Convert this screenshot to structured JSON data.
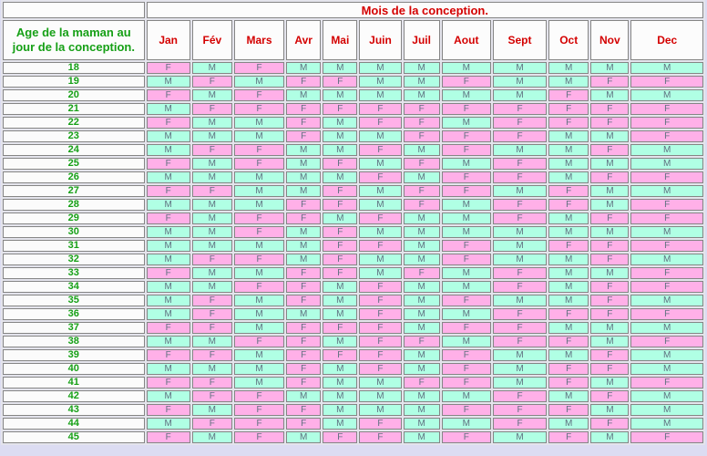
{
  "page": {
    "background": "#dcdcf2"
  },
  "table": {
    "title": "Mois de la conception.",
    "row_header": "Age de la maman au jour de la conception.",
    "months": [
      "Jan",
      "Fév",
      "Mars",
      "Avr",
      "Mai",
      "Juin",
      "Juil",
      "Aout",
      "Sept",
      "Oct",
      "Nov",
      "Dec"
    ],
    "colors": {
      "female_cell_bg": "#ffb0e8",
      "male_cell_bg": "#b0ffe4",
      "title_text": "#d40000",
      "age_text": "#16a016",
      "value_text": "#5f7080"
    },
    "rows": [
      {
        "age": "18",
        "values": [
          "F",
          "M",
          "F",
          "M",
          "M",
          "M",
          "M",
          "M",
          "M",
          "M",
          "M",
          "M"
        ]
      },
      {
        "age": "19",
        "values": [
          "M",
          "F",
          "M",
          "F",
          "F",
          "M",
          "M",
          "F",
          "M",
          "M",
          "F",
          "F"
        ]
      },
      {
        "age": "20",
        "values": [
          "F",
          "M",
          "F",
          "M",
          "M",
          "M",
          "M",
          "M",
          "M",
          "F",
          "M",
          "M"
        ]
      },
      {
        "age": "21",
        "values": [
          "M",
          "F",
          "F",
          "F",
          "F",
          "F",
          "F",
          "F",
          "F",
          "F",
          "F",
          "F"
        ]
      },
      {
        "age": "22",
        "values": [
          "F",
          "M",
          "M",
          "F",
          "M",
          "F",
          "F",
          "M",
          "F",
          "F",
          "F",
          "F"
        ]
      },
      {
        "age": "23",
        "values": [
          "M",
          "M",
          "M",
          "F",
          "M",
          "M",
          "F",
          "F",
          "F",
          "M",
          "M",
          "F"
        ]
      },
      {
        "age": "24",
        "values": [
          "M",
          "F",
          "F",
          "M",
          "M",
          "F",
          "M",
          "F",
          "M",
          "M",
          "F",
          "M"
        ]
      },
      {
        "age": "25",
        "values": [
          "F",
          "M",
          "F",
          "M",
          "F",
          "M",
          "F",
          "M",
          "F",
          "M",
          "M",
          "M"
        ]
      },
      {
        "age": "26",
        "values": [
          "M",
          "M",
          "M",
          "M",
          "M",
          "F",
          "M",
          "F",
          "F",
          "M",
          "F",
          "F"
        ]
      },
      {
        "age": "27",
        "values": [
          "F",
          "F",
          "M",
          "M",
          "F",
          "M",
          "F",
          "F",
          "M",
          "F",
          "M",
          "M"
        ]
      },
      {
        "age": "28",
        "values": [
          "M",
          "M",
          "M",
          "F",
          "F",
          "M",
          "F",
          "M",
          "F",
          "F",
          "M",
          "F"
        ]
      },
      {
        "age": "29",
        "values": [
          "F",
          "M",
          "F",
          "F",
          "M",
          "F",
          "M",
          "M",
          "F",
          "M",
          "F",
          "F"
        ]
      },
      {
        "age": "30",
        "values": [
          "M",
          "M",
          "F",
          "M",
          "F",
          "M",
          "M",
          "M",
          "M",
          "M",
          "M",
          "M"
        ]
      },
      {
        "age": "31",
        "values": [
          "M",
          "M",
          "M",
          "M",
          "F",
          "F",
          "M",
          "F",
          "M",
          "F",
          "F",
          "F"
        ]
      },
      {
        "age": "32",
        "values": [
          "M",
          "F",
          "F",
          "M",
          "F",
          "M",
          "M",
          "F",
          "M",
          "M",
          "F",
          "M"
        ]
      },
      {
        "age": "33",
        "values": [
          "F",
          "M",
          "M",
          "F",
          "F",
          "M",
          "F",
          "M",
          "F",
          "M",
          "M",
          "F"
        ]
      },
      {
        "age": "34",
        "values": [
          "M",
          "M",
          "F",
          "F",
          "M",
          "F",
          "M",
          "M",
          "F",
          "M",
          "F",
          "F"
        ]
      },
      {
        "age": "35",
        "values": [
          "M",
          "F",
          "M",
          "F",
          "M",
          "F",
          "M",
          "F",
          "M",
          "M",
          "F",
          "M"
        ]
      },
      {
        "age": "36",
        "values": [
          "M",
          "F",
          "M",
          "M",
          "M",
          "F",
          "M",
          "M",
          "F",
          "F",
          "F",
          "F"
        ]
      },
      {
        "age": "37",
        "values": [
          "F",
          "F",
          "M",
          "F",
          "F",
          "F",
          "M",
          "F",
          "F",
          "M",
          "M",
          "M"
        ]
      },
      {
        "age": "38",
        "values": [
          "M",
          "M",
          "F",
          "F",
          "M",
          "F",
          "F",
          "M",
          "F",
          "F",
          "M",
          "F"
        ]
      },
      {
        "age": "39",
        "values": [
          "F",
          "F",
          "M",
          "F",
          "F",
          "F",
          "M",
          "F",
          "M",
          "M",
          "F",
          "M"
        ]
      },
      {
        "age": "40",
        "values": [
          "M",
          "M",
          "M",
          "F",
          "M",
          "F",
          "M",
          "F",
          "M",
          "F",
          "F",
          "M"
        ]
      },
      {
        "age": "41",
        "values": [
          "F",
          "F",
          "M",
          "F",
          "M",
          "M",
          "F",
          "F",
          "M",
          "F",
          "M",
          "F"
        ]
      },
      {
        "age": "42",
        "values": [
          "M",
          "F",
          "F",
          "M",
          "M",
          "M",
          "M",
          "M",
          "F",
          "M",
          "F",
          "M"
        ]
      },
      {
        "age": "43",
        "values": [
          "F",
          "M",
          "F",
          "F",
          "M",
          "M",
          "M",
          "F",
          "F",
          "F",
          "M",
          "M"
        ]
      },
      {
        "age": "44",
        "values": [
          "M",
          "F",
          "F",
          "F",
          "M",
          "F",
          "M",
          "M",
          "F",
          "M",
          "F",
          "M"
        ]
      },
      {
        "age": "45",
        "values": [
          "F",
          "M",
          "F",
          "M",
          "F",
          "F",
          "M",
          "F",
          "M",
          "F",
          "M",
          "F"
        ]
      }
    ]
  }
}
